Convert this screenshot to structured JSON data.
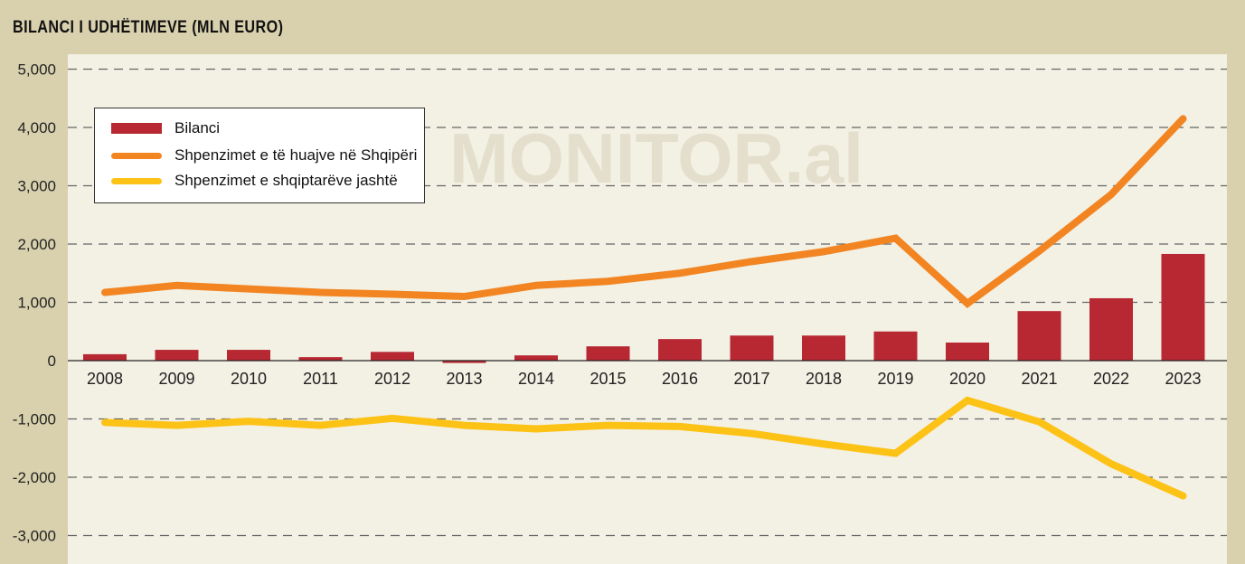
{
  "chart_data": {
    "type": "bar",
    "title": "BILANCI I UDHËTIMEVE (MLN EURO)",
    "watermark": "MONITOR.al",
    "categories": [
      "2008",
      "2009",
      "2010",
      "2011",
      "2012",
      "2013",
      "2014",
      "2015",
      "2016",
      "2017",
      "2018",
      "2019",
      "2020",
      "2021",
      "2022",
      "2023"
    ],
    "ylim": [
      -3000,
      5000
    ],
    "yticks": [
      5000,
      4000,
      3000,
      2000,
      1000,
      0,
      -1000,
      -2000,
      -3000
    ],
    "ytick_labels": [
      "5,000",
      "4,000",
      "3,000",
      "2,000",
      "1,000",
      "0",
      "-1,000",
      "-2,000",
      "-3,000"
    ],
    "grid": true,
    "legend_position": "top-left",
    "series": [
      {
        "name": "Bilanci",
        "type": "bar",
        "color": "#b72832",
        "values": [
          110,
          185,
          185,
          60,
          150,
          -40,
          90,
          245,
          370,
          430,
          430,
          500,
          310,
          850,
          1070,
          1830
        ]
      },
      {
        "name": "Shpenzimet e të huajve në Shqipëri",
        "type": "line",
        "color": "#f28522",
        "values": [
          1170,
          1290,
          1230,
          1170,
          1140,
          1100,
          1290,
          1360,
          1500,
          1700,
          1870,
          2100,
          980,
          1880,
          2850,
          4150
        ]
      },
      {
        "name": "Shpenzimet e shqiptarëve jashtë",
        "type": "line",
        "color": "#fdc216",
        "values": [
          -1060,
          -1110,
          -1040,
          -1110,
          -990,
          -1110,
          -1170,
          -1110,
          -1130,
          -1250,
          -1430,
          -1590,
          -680,
          -1050,
          -1770,
          -2320
        ]
      }
    ]
  }
}
